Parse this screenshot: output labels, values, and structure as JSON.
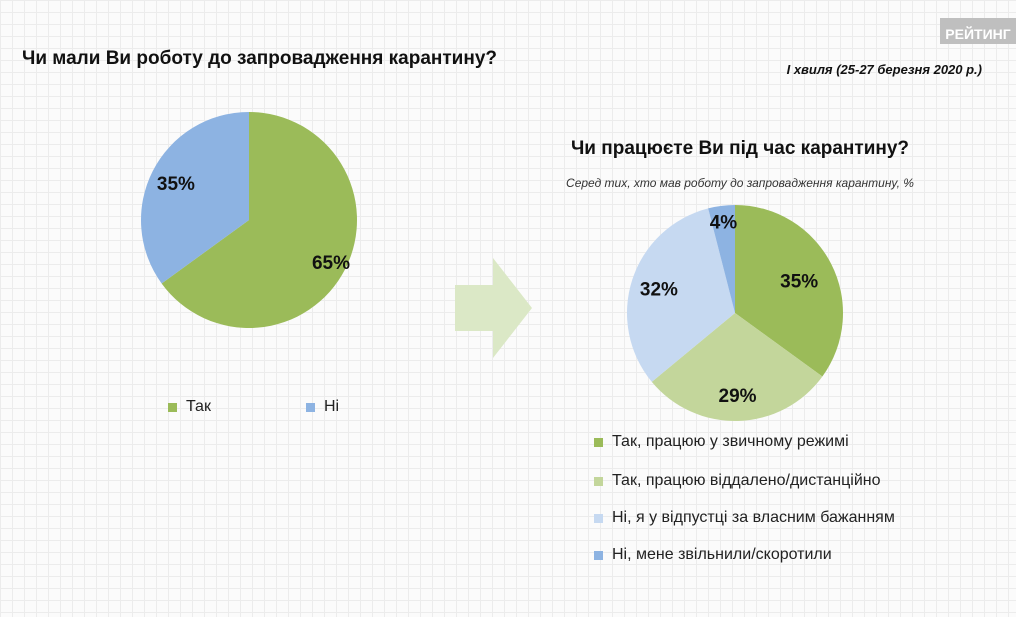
{
  "brand": "РЕЙТИНГ",
  "wave": "І хвиля (25-27 березня 2020 р.)",
  "chart_data": [
    {
      "type": "pie",
      "title": "Чи мали Ви роботу до запровадження карантину?",
      "categories": [
        "Так",
        "Ні"
      ],
      "values": [
        65,
        35
      ],
      "labels": [
        "65%",
        "35%"
      ],
      "colors": [
        "#9bbb59",
        "#8db3e2"
      ],
      "legend": "bottom"
    },
    {
      "type": "pie",
      "title": "Чи працюєте Ви під час карантину?",
      "subtitle": "Серед тих, хто мав роботу до запровадження карантину, %",
      "categories": [
        "Так, працюю у звичному режимі",
        "Так, працюю віддалено/дистанційно",
        "Ні, я у відпустці за власним бажанням",
        "Ні, мене звільнили/скоротили"
      ],
      "values": [
        35,
        29,
        32,
        4
      ],
      "labels": [
        "35%",
        "29%",
        "32%",
        "4%"
      ],
      "colors": [
        "#9bbb59",
        "#c3d69b",
        "#c6d9f1",
        "#8db3e2"
      ],
      "legend": "bottom"
    }
  ],
  "arrow_icon": "right-arrow-icon"
}
